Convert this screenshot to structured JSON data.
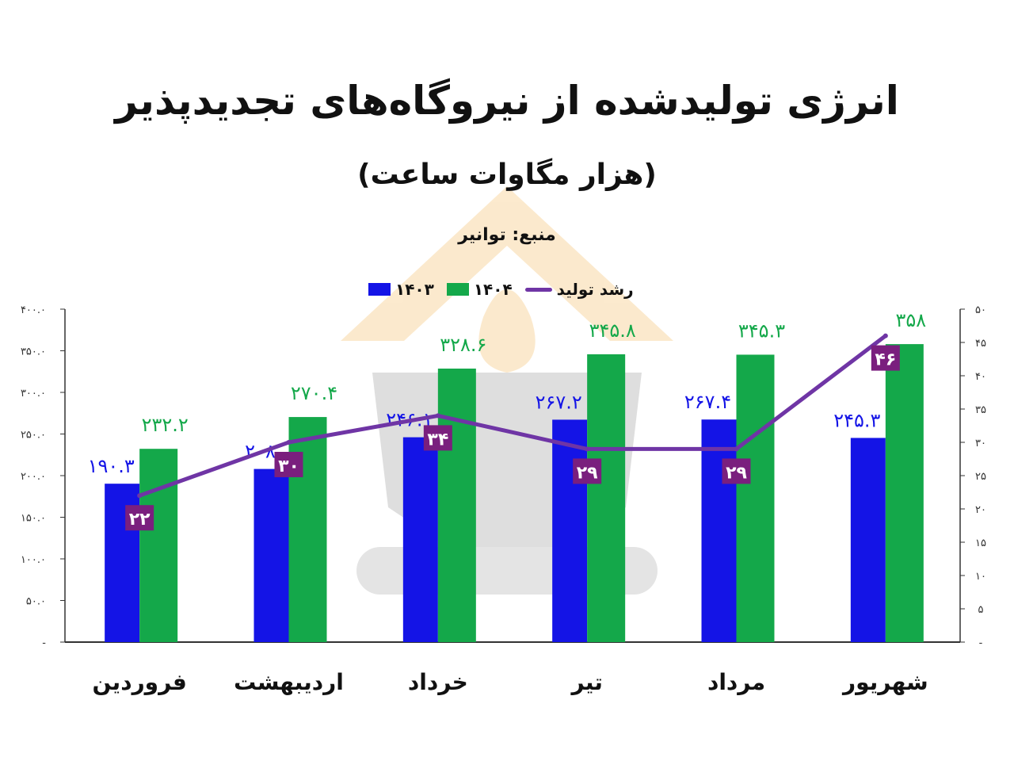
{
  "title": "انرژی تولیدشده از نیروگاه‌های تجدیدپذیر",
  "subtitle": "(هزار مگاوات ساعت)",
  "source": "منبع: توانیر",
  "colors": {
    "series_1403": "#1414e6",
    "series_1404": "#14a84a",
    "growth_line": "#6f35a5",
    "growth_label_bg": "#7a1f7e",
    "axis": "#333333"
  },
  "chart_data": {
    "type": "bar",
    "categories": [
      "فروردین",
      "اردیبهشت",
      "خرداد",
      "تیر",
      "مرداد",
      "شهریور"
    ],
    "series": [
      {
        "name": "۱۴۰۳",
        "axis": "left",
        "values": [
          190.3,
          208,
          246.1,
          267.2,
          267.4,
          245.3
        ],
        "labels": [
          "۱۹۰.۳",
          "۲۰۸",
          "۲۴۶.۱",
          "۲۶۷.۲",
          "۲۶۷.۴",
          "۲۴۵.۳"
        ]
      },
      {
        "name": "۱۴۰۴",
        "axis": "left",
        "values": [
          232.2,
          270.4,
          328.6,
          345.8,
          345.3,
          358
        ],
        "labels": [
          "۲۳۲.۲",
          "۲۷۰.۴",
          "۳۲۸.۶",
          "۳۴۵.۸",
          "۳۴۵.۳",
          "۳۵۸"
        ]
      },
      {
        "name": "رشد تولید",
        "type": "line",
        "axis": "right",
        "values": [
          22,
          30,
          34,
          29,
          29,
          46
        ],
        "labels": [
          "۲۲",
          "۳۰",
          "۳۴",
          "۲۹",
          "۲۹",
          "۴۶"
        ]
      }
    ],
    "y_left": {
      "range": [
        0,
        400
      ],
      "ticks": [
        0,
        50,
        100,
        150,
        200,
        250,
        300,
        350,
        400
      ],
      "tick_labels": [
        "-",
        "۵۰.۰",
        "۱۰۰.۰",
        "۱۵۰.۰",
        "۲۰۰.۰",
        "۲۵۰.۰",
        "۳۰۰.۰",
        "۳۵۰.۰",
        "۴۰۰.۰"
      ]
    },
    "y_right": {
      "range": [
        0,
        50
      ],
      "ticks": [
        0,
        5,
        10,
        15,
        20,
        25,
        30,
        35,
        40,
        45,
        50
      ],
      "tick_labels": [
        "-",
        "۵",
        "۱۰",
        "۱۵",
        "۲۰",
        "۲۵",
        "۳۰",
        "۳۵",
        "۴۰",
        "۴۵",
        "۵۰"
      ]
    },
    "grid": false,
    "legend_position": "top-center"
  }
}
